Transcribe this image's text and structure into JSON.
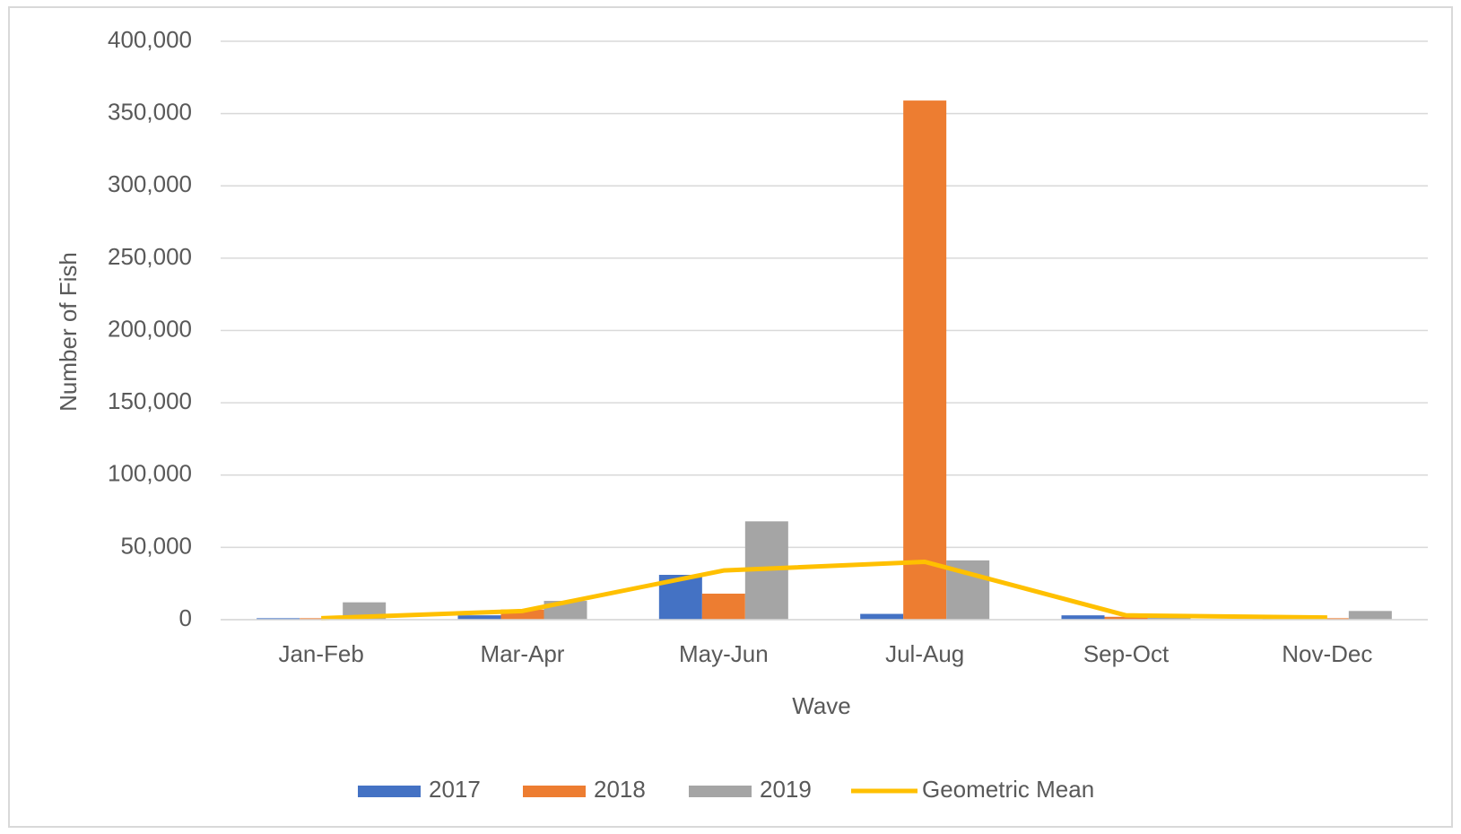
{
  "chart_data": {
    "type": "bar",
    "x_label": "Wave",
    "y_label": "Number of Fish",
    "categories": [
      "Jan-Feb",
      "Mar-Apr",
      "May-Jun",
      "Jul-Aug",
      "Sep-Oct",
      "Nov-Dec"
    ],
    "series": [
      {
        "name": "2017",
        "color": "#4472c4",
        "values": [
          1000,
          3000,
          31000,
          4000,
          3000,
          1000
        ]
      },
      {
        "name": "2018",
        "color": "#ed7d31",
        "values": [
          1000,
          7000,
          18000,
          359000,
          2000,
          1000
        ]
      },
      {
        "name": "2019",
        "color": "#a5a5a5",
        "values": [
          12000,
          13000,
          68000,
          41000,
          3000,
          6000
        ]
      },
      {
        "name": "Geometric Mean",
        "type": "line",
        "color": "#ffc000",
        "values": [
          1000,
          6000,
          34000,
          40000,
          3000,
          1500
        ]
      }
    ],
    "ylim": [
      0,
      400000
    ],
    "yticks": [
      0,
      {
        "value": 50000,
        "label": "50,000"
      },
      {
        "value": 100000,
        "label": "100,000"
      },
      {
        "value": 150000,
        "label": "150,000"
      },
      {
        "value": 200000,
        "label": "200,000"
      },
      {
        "value": 250000,
        "label": "250,000"
      },
      {
        "value": 300000,
        "label": "300,000"
      },
      {
        "value": 350000,
        "label": "350,000"
      },
      {
        "value": 400000,
        "label": "400,000"
      }
    ],
    "grid": true,
    "legend": "bottom"
  }
}
